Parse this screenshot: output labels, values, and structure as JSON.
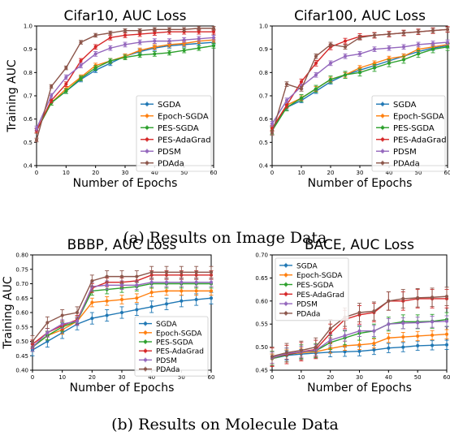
{
  "captions": {
    "a": "(a) Results on Image Data",
    "b": "(b) Results on Molecule Data"
  },
  "series_colors": {
    "SGDA": "#1f77b4",
    "Epoch-SGDA": "#ff7f0e",
    "PES-SGDA": "#2ca02c",
    "PES-AdaGrad": "#d62728",
    "PDSM": "#9467bd",
    "PDAda": "#8c564b"
  },
  "chart_data": [
    {
      "type": "line",
      "title": "Cifar10, AUC Loss",
      "xlabel": "Number of Epochs",
      "ylabel": "Training AUC",
      "xlim": [
        0,
        60
      ],
      "ylim": [
        0.4,
        1.0
      ],
      "xticks": [
        "0",
        "10",
        "20",
        "30",
        "40",
        "50",
        "60"
      ],
      "yticks": [
        "0.4",
        "0.5",
        "0.6",
        "0.7",
        "0.8",
        "0.9",
        "1.0"
      ],
      "grid": false,
      "legend_position": "bottom-right",
      "x": [
        0,
        5,
        10,
        15,
        20,
        25,
        30,
        35,
        40,
        45,
        50,
        55,
        60
      ],
      "series": [
        {
          "name": "SGDA",
          "values": [
            0.55,
            0.67,
            0.72,
            0.77,
            0.81,
            0.84,
            0.87,
            0.89,
            0.905,
            0.915,
            0.92,
            0.925,
            0.93
          ],
          "err": 0.01
        },
        {
          "name": "Epoch-SGDA",
          "values": [
            0.55,
            0.67,
            0.73,
            0.78,
            0.83,
            0.85,
            0.87,
            0.895,
            0.91,
            0.92,
            0.925,
            0.935,
            0.94
          ],
          "err": 0.01
        },
        {
          "name": "PES-SGDA",
          "values": [
            0.55,
            0.67,
            0.72,
            0.775,
            0.82,
            0.85,
            0.865,
            0.875,
            0.88,
            0.885,
            0.895,
            0.905,
            0.915
          ],
          "err": 0.01
        },
        {
          "name": "PES-AdaGrad",
          "values": [
            0.55,
            0.68,
            0.75,
            0.85,
            0.91,
            0.95,
            0.96,
            0.965,
            0.97,
            0.975,
            0.975,
            0.975,
            0.975
          ],
          "err": 0.01
        },
        {
          "name": "PDSM",
          "values": [
            0.56,
            0.7,
            0.78,
            0.83,
            0.88,
            0.905,
            0.92,
            0.93,
            0.935,
            0.935,
            0.94,
            0.945,
            0.95
          ],
          "err": 0.01
        },
        {
          "name": "PDAda",
          "values": [
            0.51,
            0.74,
            0.82,
            0.93,
            0.96,
            0.97,
            0.98,
            0.98,
            0.985,
            0.985,
            0.985,
            0.99,
            0.99
          ],
          "err": 0.008
        }
      ]
    },
    {
      "type": "line",
      "title": "Cifar100, AUC Loss",
      "xlabel": "Number of Epochs",
      "ylabel": "",
      "xlim": [
        0,
        60
      ],
      "ylim": [
        0.4,
        1.0
      ],
      "xticks": [
        "0",
        "10",
        "20",
        "30",
        "40",
        "50",
        "60"
      ],
      "yticks": [
        "0.4",
        "0.5",
        "0.6",
        "0.7",
        "0.8",
        "0.9",
        "1.0"
      ],
      "grid": false,
      "legend_position": "bottom-right",
      "x": [
        0,
        5,
        10,
        15,
        20,
        25,
        30,
        35,
        40,
        45,
        50,
        55,
        60
      ],
      "series": [
        {
          "name": "SGDA",
          "values": [
            0.56,
            0.65,
            0.68,
            0.72,
            0.76,
            0.79,
            0.81,
            0.83,
            0.85,
            0.87,
            0.89,
            0.905,
            0.915
          ],
          "err": 0.01
        },
        {
          "name": "Epoch-SGDA",
          "values": [
            0.56,
            0.66,
            0.69,
            0.73,
            0.77,
            0.79,
            0.82,
            0.84,
            0.86,
            0.87,
            0.9,
            0.91,
            0.92
          ],
          "err": 0.01
        },
        {
          "name": "PES-SGDA",
          "values": [
            0.55,
            0.65,
            0.69,
            0.73,
            0.77,
            0.79,
            0.8,
            0.82,
            0.84,
            0.855,
            0.88,
            0.9,
            0.91
          ],
          "err": 0.015
        },
        {
          "name": "PES-AdaGrad",
          "values": [
            0.56,
            0.66,
            0.76,
            0.84,
            0.91,
            0.935,
            0.955,
            0.96,
            0.965,
            0.97,
            0.975,
            0.98,
            0.985
          ],
          "err": 0.012
        },
        {
          "name": "PDSM",
          "values": [
            0.58,
            0.68,
            0.74,
            0.79,
            0.84,
            0.87,
            0.88,
            0.9,
            0.905,
            0.91,
            0.92,
            0.925,
            0.93
          ],
          "err": 0.01
        },
        {
          "name": "PDAda",
          "values": [
            0.54,
            0.75,
            0.73,
            0.87,
            0.92,
            0.91,
            0.95,
            0.96,
            0.965,
            0.97,
            0.975,
            0.98,
            0.985
          ],
          "err": 0.01
        }
      ]
    },
    {
      "type": "line",
      "title": "BBBP, AUC Loss",
      "xlabel": "Number of Epochs",
      "ylabel": "Training AUC",
      "xlim": [
        0,
        60
      ],
      "ylim": [
        0.4,
        0.8
      ],
      "xticks": [
        "0",
        "10",
        "20",
        "30",
        "40",
        "50",
        "60"
      ],
      "yticks": [
        "0.40",
        "0.45",
        "0.50",
        "0.55",
        "0.60",
        "0.65",
        "0.70",
        "0.75",
        "0.80"
      ],
      "grid": false,
      "legend_position": "bottom-right",
      "x": [
        0,
        5,
        10,
        15,
        20,
        25,
        30,
        35,
        40,
        45,
        50,
        55,
        60
      ],
      "series": [
        {
          "name": "SGDA",
          "values": [
            0.47,
            0.5,
            0.53,
            0.56,
            0.58,
            0.59,
            0.6,
            0.61,
            0.62,
            0.63,
            0.64,
            0.645,
            0.65
          ],
          "err": 0.02
        },
        {
          "name": "Epoch-SGDA",
          "values": [
            0.48,
            0.52,
            0.54,
            0.57,
            0.635,
            0.64,
            0.645,
            0.65,
            0.67,
            0.675,
            0.675,
            0.675,
            0.675
          ],
          "err": 0.015
        },
        {
          "name": "PES-SGDA",
          "values": [
            0.48,
            0.52,
            0.55,
            0.57,
            0.675,
            0.68,
            0.685,
            0.69,
            0.7,
            0.7,
            0.7,
            0.7,
            0.7
          ],
          "err": 0.015
        },
        {
          "name": "PES-AdaGrad",
          "values": [
            0.49,
            0.53,
            0.555,
            0.575,
            0.685,
            0.705,
            0.705,
            0.71,
            0.73,
            0.73,
            0.73,
            0.73,
            0.73
          ],
          "err": 0.015
        },
        {
          "name": "PDSM",
          "values": [
            0.48,
            0.53,
            0.56,
            0.57,
            0.69,
            0.695,
            0.695,
            0.695,
            0.705,
            0.705,
            0.705,
            0.705,
            0.705
          ],
          "err": 0.015
        },
        {
          "name": "PDAda",
          "values": [
            0.5,
            0.565,
            0.59,
            0.6,
            0.71,
            0.725,
            0.725,
            0.725,
            0.74,
            0.74,
            0.74,
            0.74,
            0.74
          ],
          "err": 0.02
        }
      ]
    },
    {
      "type": "line",
      "title": "BACE, AUC Loss",
      "xlabel": "Number of Epochs",
      "ylabel": "",
      "xlim": [
        0,
        60
      ],
      "ylim": [
        0.45,
        0.7
      ],
      "xticks": [
        "0",
        "10",
        "20",
        "30",
        "40",
        "50",
        "60"
      ],
      "yticks": [
        "0.45",
        "0.50",
        "0.55",
        "0.60",
        "0.65",
        "0.70"
      ],
      "grid": false,
      "legend_position": "top-left",
      "x": [
        0,
        5,
        10,
        15,
        20,
        25,
        30,
        35,
        40,
        45,
        50,
        55,
        60
      ],
      "series": [
        {
          "name": "SGDA",
          "values": [
            0.475,
            0.482,
            0.485,
            0.487,
            0.489,
            0.49,
            0.491,
            0.494,
            0.498,
            0.5,
            0.503,
            0.504,
            0.505
          ],
          "err": 0.01
        },
        {
          "name": "Epoch-SGDA",
          "values": [
            0.475,
            0.484,
            0.488,
            0.49,
            0.497,
            0.503,
            0.505,
            0.508,
            0.52,
            0.522,
            0.524,
            0.526,
            0.528
          ],
          "err": 0.01
        },
        {
          "name": "PES-SGDA",
          "values": [
            0.476,
            0.483,
            0.49,
            0.492,
            0.51,
            0.52,
            0.53,
            0.535,
            0.55,
            0.555,
            0.555,
            0.556,
            0.56
          ],
          "err": 0.015
        },
        {
          "name": "PES-AdaGrad",
          "values": [
            0.478,
            0.484,
            0.49,
            0.495,
            0.53,
            0.56,
            0.57,
            0.575,
            0.6,
            0.6,
            0.605,
            0.605,
            0.605
          ],
          "err": 0.02
        },
        {
          "name": "PDSM",
          "values": [
            0.477,
            0.486,
            0.49,
            0.493,
            0.515,
            0.525,
            0.535,
            0.535,
            0.55,
            0.552,
            0.553,
            0.555,
            0.556
          ],
          "err": 0.012
        },
        {
          "name": "PDAda",
          "values": [
            0.48,
            0.488,
            0.493,
            0.5,
            0.54,
            0.565,
            0.575,
            0.578,
            0.6,
            0.605,
            0.607,
            0.608,
            0.61
          ],
          "err": 0.02
        }
      ]
    }
  ]
}
